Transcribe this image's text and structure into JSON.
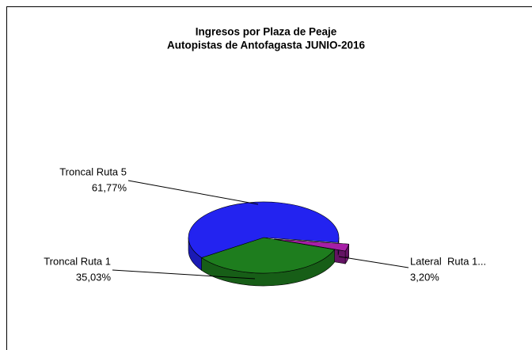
{
  "chart_data": {
    "type": "pie3d",
    "title": "Ingresos por Plaza de Peaje",
    "subtitle": "Autopistas de Antofagasta JUNIO-2016",
    "categories": [
      "Troncal Ruta 5",
      "Troncal Ruta 1",
      "Lateral  Ruta 1..."
    ],
    "values": [
      61.77,
      35.03,
      3.2
    ],
    "value_labels": [
      "61,77%",
      "35,03%",
      "3,20%"
    ],
    "colors": [
      "#2323f0",
      "#1e7d1e",
      "#a61fa6"
    ]
  }
}
